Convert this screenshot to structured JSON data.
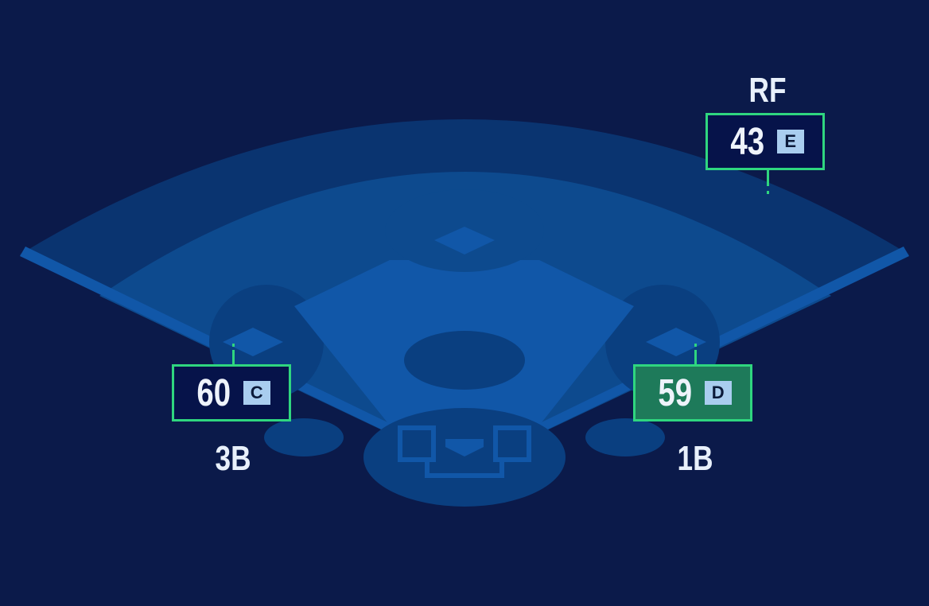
{
  "colors": {
    "background": "#0b1a4a",
    "outfield_warning": "#0a3470",
    "outfield_grass": "#0d4a8e",
    "infield": "#1157a8",
    "accent_border": "#2fd67f",
    "highlight_fill": "#1e7a5a",
    "grade_badge": "#a9cdef"
  },
  "positions": [
    {
      "id": "rf",
      "label": "RF",
      "value": "43",
      "grade": "E",
      "highlighted": false
    },
    {
      "id": "3b",
      "label": "3B",
      "value": "60",
      "grade": "C",
      "highlighted": false
    },
    {
      "id": "1b",
      "label": "1B",
      "value": "59",
      "grade": "D",
      "highlighted": true
    }
  ]
}
